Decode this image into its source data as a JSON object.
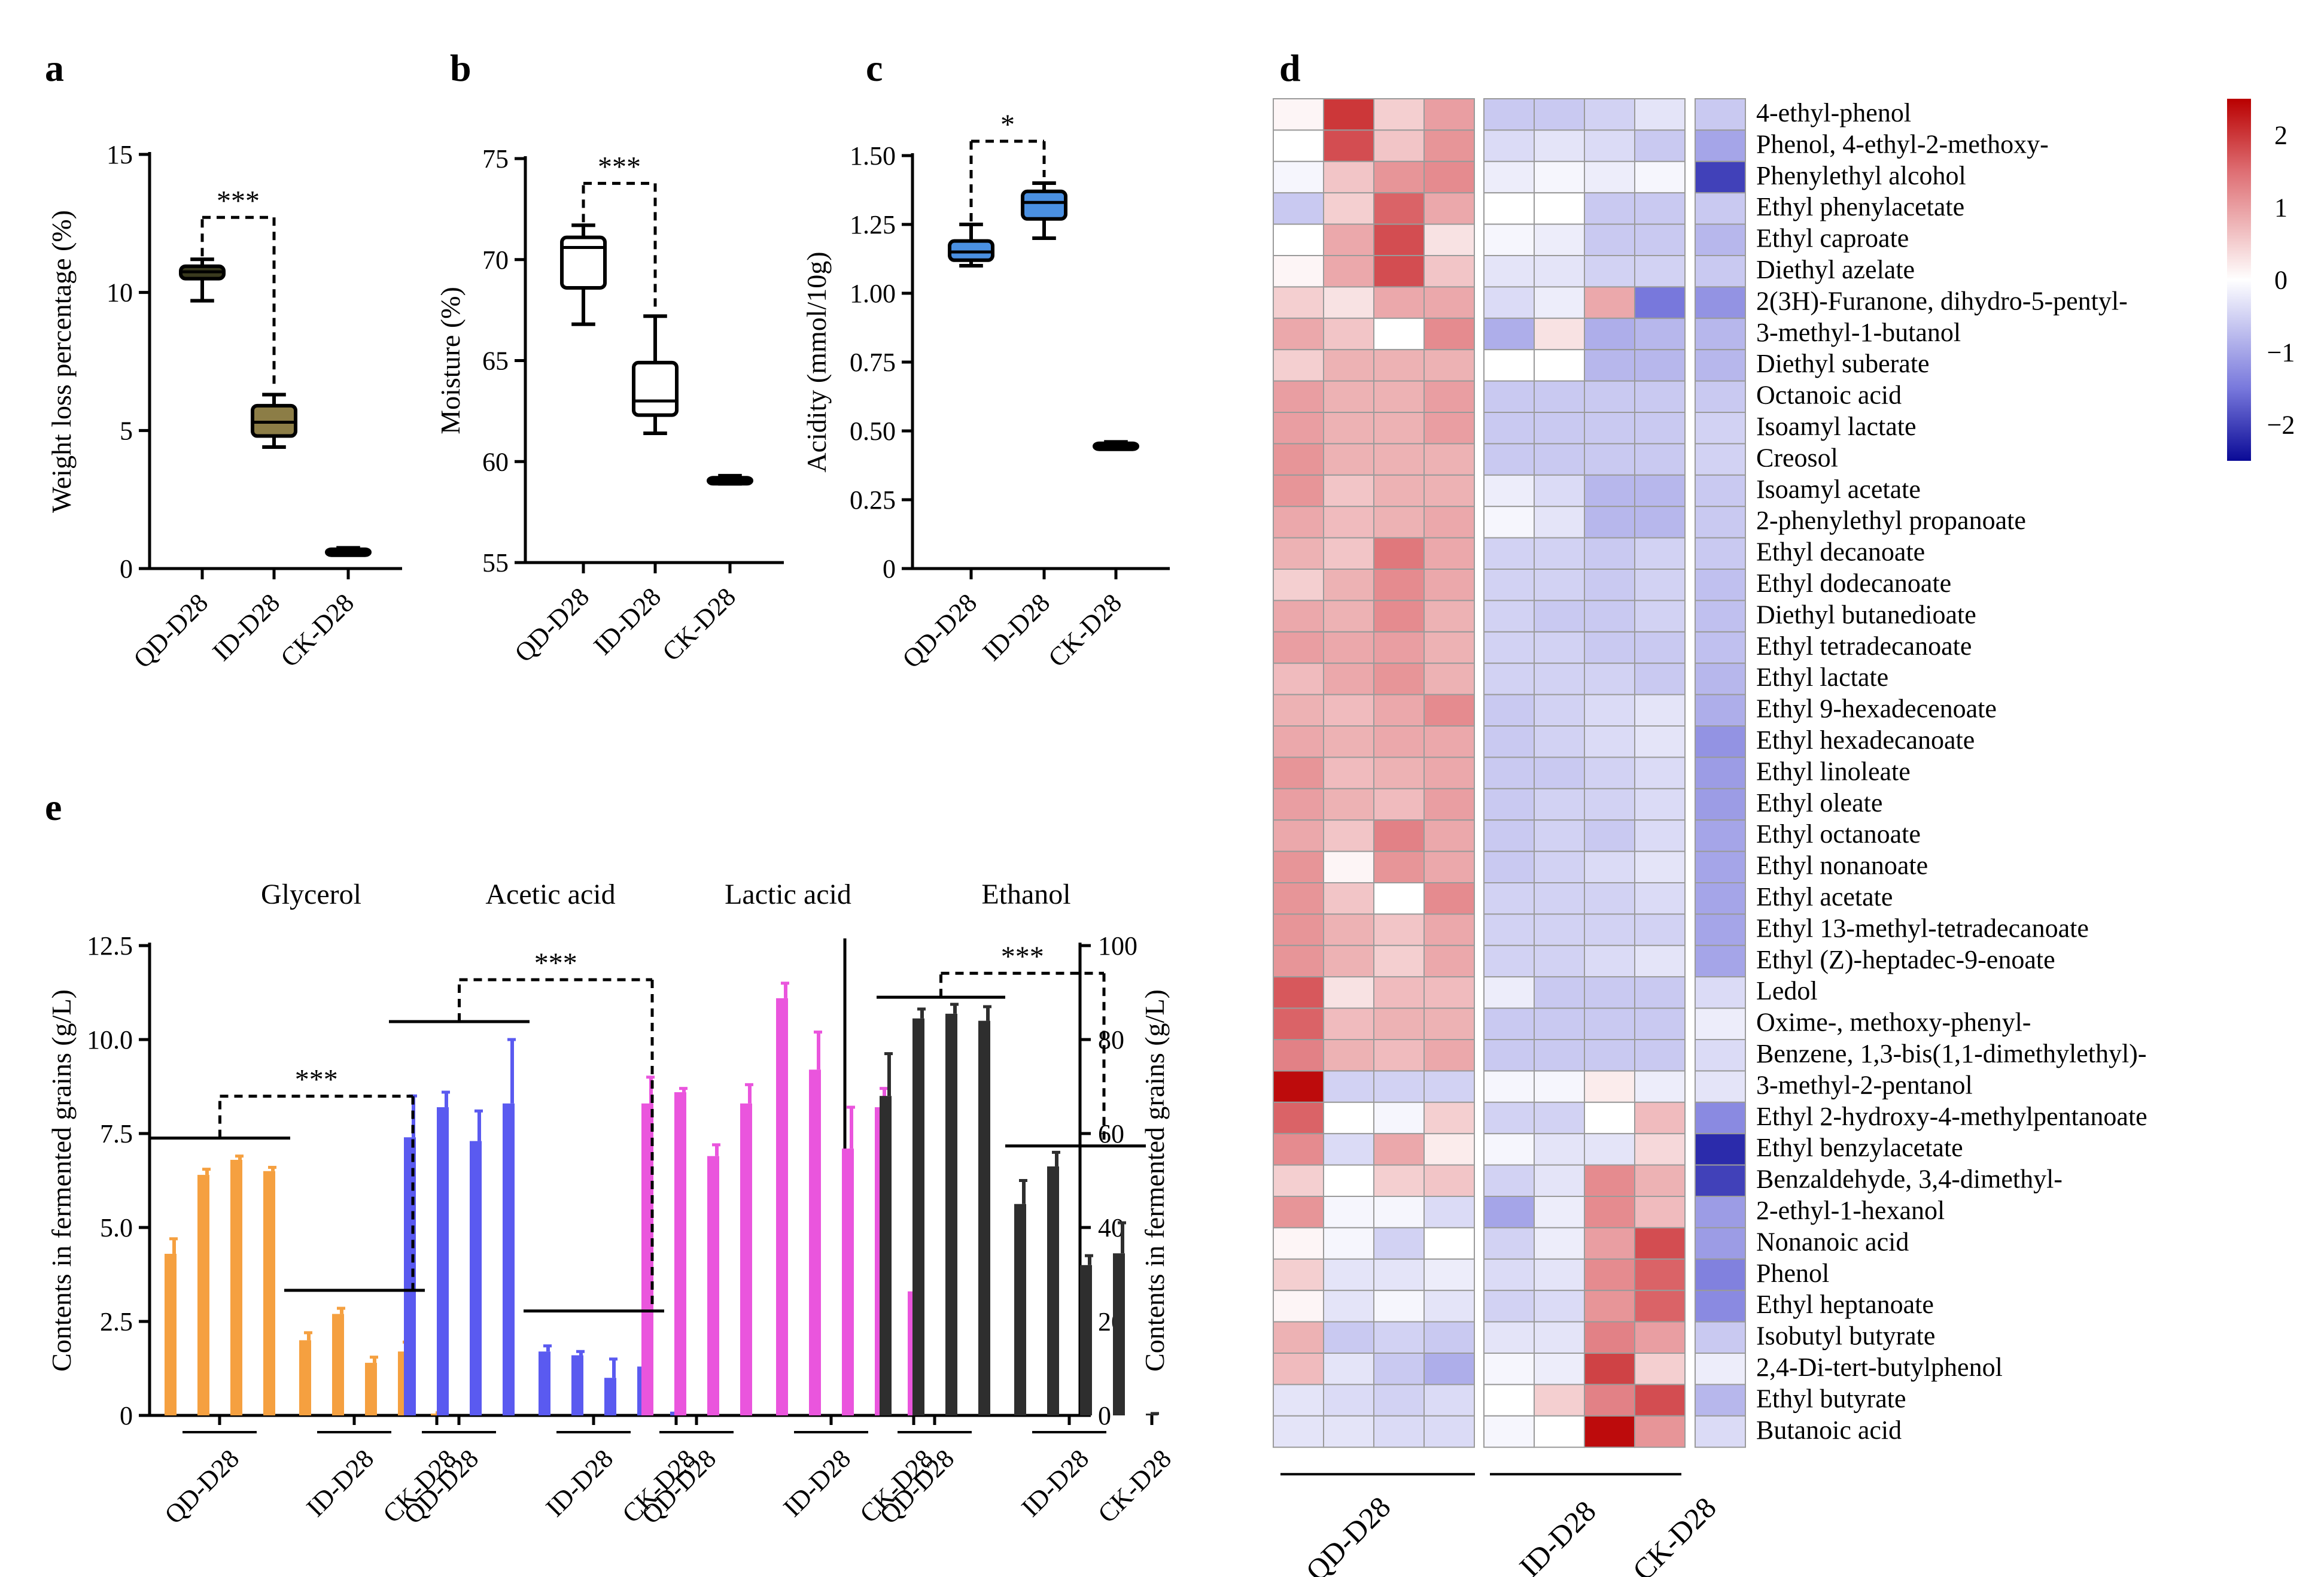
{
  "figure": {
    "panel_labels": [
      "a",
      "b",
      "c",
      "d",
      "e"
    ],
    "sig_a": "***",
    "sig_b": "***",
    "sig_c": "*",
    "sig_e_glycerol": "***",
    "sig_e_acetic": "***",
    "sig_e_ethanol": "***"
  },
  "chart_data": [
    {
      "panel": "a",
      "type": "box",
      "ylabel": "Weight loss percentage (%)",
      "categories": [
        "QD-D28",
        "ID-D28",
        "CK-D28"
      ],
      "yticks": [
        0,
        5,
        10,
        15
      ],
      "ytick_labels": [
        "0",
        "5",
        "10",
        "15"
      ],
      "ylim": [
        0,
        15
      ],
      "boxes": [
        {
          "min": 9.7,
          "q1": 10.5,
          "median": 10.75,
          "q3": 10.95,
          "max": 11.2,
          "color": "#3a3a1e"
        },
        {
          "min": 4.4,
          "q1": 4.8,
          "median": 5.3,
          "q3": 5.9,
          "max": 6.3,
          "color": "#8c7d46"
        },
        {
          "min": 0.5,
          "q1": 0.6,
          "median": 0.65,
          "q3": 0.7,
          "max": 0.75,
          "color": "#000000"
        }
      ],
      "significance": [
        {
          "from": 0,
          "to": 1,
          "label": "***"
        }
      ]
    },
    {
      "panel": "b",
      "type": "box",
      "ylabel": "Moisture (%)",
      "categories": [
        "QD-D28",
        "ID-D28",
        "CK-D28"
      ],
      "yticks": [
        55,
        60,
        65,
        70,
        75
      ],
      "ytick_labels": [
        "55",
        "60",
        "65",
        "70",
        "75"
      ],
      "ylim": [
        55,
        75
      ],
      "boxes": [
        {
          "min": 66.8,
          "q1": 68.6,
          "median": 70.6,
          "q3": 71.1,
          "max": 71.7,
          "color": "#ffffff"
        },
        {
          "min": 61.4,
          "q1": 62.3,
          "median": 63.0,
          "q3": 64.9,
          "max": 67.2,
          "color": "#ffffff"
        },
        {
          "min": 58.9,
          "q1": 59.0,
          "median": 59.1,
          "q3": 59.2,
          "max": 59.3,
          "color": "#000000"
        }
      ],
      "significance": [
        {
          "from": 0,
          "to": 1,
          "label": "***"
        }
      ]
    },
    {
      "panel": "c",
      "type": "box",
      "ylabel": "Acidity (mmol/10g)",
      "categories": [
        "QD-D28",
        "ID-D28",
        "CK-D28"
      ],
      "yticks": [
        0,
        0.25,
        0.5,
        0.75,
        1.0,
        1.25,
        1.5
      ],
      "ytick_labels": [
        "0",
        "0.25",
        "0.50",
        "0.75",
        "1.00",
        "1.25",
        "1.50"
      ],
      "ylim": [
        0,
        1.55
      ],
      "boxes": [
        {
          "min": 1.1,
          "q1": 1.12,
          "median": 1.15,
          "q3": 1.19,
          "max": 1.25,
          "color": "#4a90e2"
        },
        {
          "min": 1.2,
          "q1": 1.27,
          "median": 1.33,
          "q3": 1.37,
          "max": 1.4,
          "color": "#4a90e2"
        },
        {
          "min": 0.44,
          "q1": 0.445,
          "median": 0.45,
          "q3": 0.455,
          "max": 0.46,
          "color": "#000000"
        }
      ],
      "significance": [
        {
          "from": 0,
          "to": 1,
          "label": "*"
        }
      ]
    },
    {
      "panel": "d",
      "type": "heatmap",
      "colorbar": {
        "ticks": [
          2,
          1,
          0,
          -1,
          -2
        ],
        "tick_labels": [
          "2",
          "1",
          "0",
          "−1",
          "−2"
        ],
        "range": [
          -2.5,
          2.5
        ]
      },
      "group_labels": [
        "QD-D28",
        "ID-D28",
        "CK-D28"
      ],
      "rows": [
        "4-ethyl-phenol",
        "Phenol, 4-ethyl-2-methoxy-",
        "Phenylethyl alcohol",
        "Ethyl phenylacetate",
        "Ethyl caproate",
        "Diethyl azelate",
        "2(3H)-Furanone, dihydro-5-pentyl-",
        "3-methyl-1-butanol",
        "Diethyl suberate",
        "Octanoic acid",
        "Isoamyl lactate",
        "Creosol",
        "Isoamyl acetate",
        "2-phenylethyl propanoate",
        "Ethyl decanoate",
        "Ethyl dodecanoate",
        "Diethyl butanedioate",
        "Ethyl tetradecanoate",
        "Ethyl lactate",
        "Ethyl 9-hexadecenoate",
        "Ethyl hexadecanoate",
        "Ethyl linoleate",
        "Ethyl oleate",
        "Ethyl octanoate",
        "Ethyl nonanoate",
        "Ethyl acetate",
        "Ethyl 13-methyl-tetradecanoate",
        "Ethyl (Z)-heptadec-9-enoate",
        "Ledol",
        "Oxime-, methoxy-phenyl-",
        "Benzene, 1,3-bis(1,1-dimethylethyl)-",
        "3-methyl-2-pentanol",
        "Ethyl 2-hydroxy-4-methylpentanoate",
        "Ethyl benzylacetate",
        "Benzaldehyde, 3,4-dimethyl-",
        "2-ethyl-1-hexanol",
        "Nonanoic acid",
        "Phenol",
        "Ethyl heptanoate",
        "Isobutyl butyrate",
        "2,4-Di-tert-butylphenol",
        "Ethyl butyrate",
        "Butanoic acid"
      ],
      "values": [
        [
          0.1,
          2.0,
          0.5,
          1.0,
          -0.6,
          -0.6,
          -0.5,
          -0.3,
          -0.6
        ],
        [
          0.0,
          1.8,
          0.6,
          1.1,
          -0.4,
          -0.3,
          -0.4,
          -0.6,
          -1.0
        ],
        [
          -0.1,
          0.6,
          1.1,
          1.2,
          -0.2,
          -0.1,
          -0.2,
          -0.1,
          -2.0
        ],
        [
          -0.6,
          0.5,
          1.6,
          0.9,
          0.0,
          0.0,
          -0.6,
          -0.6,
          -0.6
        ],
        [
          0.0,
          0.9,
          1.8,
          0.3,
          -0.1,
          -0.2,
          -0.6,
          -0.6,
          -0.8
        ],
        [
          0.1,
          0.9,
          1.8,
          0.6,
          -0.3,
          -0.3,
          -0.5,
          -0.5,
          -0.6
        ],
        [
          0.5,
          0.3,
          0.9,
          0.9,
          -0.4,
          -0.2,
          0.9,
          -1.5,
          -1.2
        ],
        [
          0.9,
          0.6,
          0.0,
          1.2,
          -0.9,
          0.3,
          -0.9,
          -0.8,
          -0.8
        ],
        [
          0.5,
          0.8,
          0.8,
          0.8,
          0.0,
          0.0,
          -0.8,
          -0.8,
          -0.8
        ],
        [
          1.0,
          0.8,
          0.8,
          1.0,
          -0.6,
          -0.6,
          -0.6,
          -0.6,
          -0.6
        ],
        [
          1.0,
          0.8,
          0.8,
          1.0,
          -0.6,
          -0.6,
          -0.6,
          -0.6,
          -0.5
        ],
        [
          1.1,
          0.8,
          0.8,
          0.8,
          -0.6,
          -0.6,
          -0.6,
          -0.6,
          -0.5
        ],
        [
          1.1,
          0.6,
          0.8,
          0.8,
          -0.2,
          -0.4,
          -0.8,
          -0.8,
          -0.6
        ],
        [
          0.9,
          0.7,
          0.8,
          0.9,
          -0.1,
          -0.3,
          -0.8,
          -0.8,
          -0.6
        ],
        [
          0.8,
          0.6,
          1.4,
          0.9,
          -0.5,
          -0.5,
          -0.6,
          -0.5,
          -0.6
        ],
        [
          0.5,
          0.8,
          1.2,
          0.9,
          -0.5,
          -0.5,
          -0.6,
          -0.5,
          -0.7
        ],
        [
          0.9,
          0.8,
          1.2,
          0.8,
          -0.5,
          -0.6,
          -0.6,
          -0.5,
          -0.7
        ],
        [
          1.0,
          0.9,
          1.0,
          0.8,
          -0.5,
          -0.5,
          -0.6,
          -0.6,
          -0.7
        ],
        [
          0.7,
          0.9,
          1.1,
          0.8,
          -0.5,
          -0.5,
          -0.5,
          -0.6,
          -0.8
        ],
        [
          0.8,
          0.7,
          0.9,
          1.2,
          -0.6,
          -0.5,
          -0.4,
          -0.3,
          -0.9
        ],
        [
          0.9,
          0.8,
          0.9,
          0.9,
          -0.6,
          -0.5,
          -0.4,
          -0.3,
          -1.2
        ],
        [
          1.1,
          0.7,
          0.8,
          0.9,
          -0.6,
          -0.6,
          -0.5,
          -0.4,
          -1.1
        ],
        [
          1.0,
          0.8,
          0.7,
          1.0,
          -0.6,
          -0.5,
          -0.5,
          -0.4,
          -1.1
        ],
        [
          0.9,
          0.6,
          1.3,
          0.9,
          -0.6,
          -0.5,
          -0.6,
          -0.4,
          -1.0
        ],
        [
          1.1,
          0.1,
          1.1,
          0.9,
          -0.6,
          -0.5,
          -0.4,
          -0.3,
          -1.0
        ],
        [
          1.1,
          0.6,
          0.0,
          1.2,
          -0.5,
          -0.5,
          -0.5,
          -0.4,
          -1.0
        ],
        [
          1.1,
          0.8,
          0.6,
          0.9,
          -0.5,
          -0.5,
          -0.5,
          -0.5,
          -1.0
        ],
        [
          1.1,
          0.8,
          0.5,
          0.9,
          -0.5,
          -0.5,
          -0.4,
          -0.3,
          -1.0
        ],
        [
          1.7,
          0.3,
          0.7,
          0.7,
          -0.2,
          -0.6,
          -0.6,
          -0.6,
          -0.4
        ],
        [
          1.6,
          0.7,
          0.8,
          0.8,
          -0.6,
          -0.6,
          -0.6,
          -0.6,
          -0.2
        ],
        [
          1.3,
          0.8,
          0.7,
          0.9,
          -0.6,
          -0.6,
          -0.6,
          -0.6,
          -0.4
        ],
        [
          2.4,
          -0.5,
          -0.5,
          -0.5,
          -0.1,
          -0.1,
          0.2,
          -0.2,
          -0.3
        ],
        [
          1.6,
          0.0,
          -0.1,
          0.5,
          -0.5,
          -0.5,
          0.0,
          0.7,
          -1.3
        ],
        [
          1.2,
          -0.4,
          0.9,
          0.2,
          -0.1,
          -0.3,
          -0.3,
          0.4,
          -2.2
        ],
        [
          0.5,
          0.0,
          0.5,
          0.6,
          -0.5,
          -0.3,
          1.2,
          0.8,
          -2.0
        ],
        [
          1.1,
          -0.1,
          -0.1,
          -0.4,
          -1.0,
          -0.2,
          1.2,
          0.7,
          -1.1
        ],
        [
          0.1,
          -0.1,
          -0.5,
          0.0,
          -0.5,
          -0.2,
          1.0,
          1.8,
          -1.1
        ],
        [
          0.5,
          -0.3,
          -0.3,
          -0.2,
          -0.4,
          -0.3,
          1.2,
          1.6,
          -1.4
        ],
        [
          0.1,
          -0.3,
          -0.1,
          -0.3,
          -0.5,
          -0.4,
          1.1,
          1.6,
          -1.3
        ],
        [
          0.8,
          -0.6,
          -0.5,
          -0.6,
          -0.3,
          -0.3,
          1.3,
          1.0,
          -0.6
        ],
        [
          0.7,
          -0.3,
          -0.6,
          -0.9,
          -0.1,
          -0.2,
          1.9,
          0.5,
          -0.2
        ],
        [
          -0.3,
          -0.4,
          -0.5,
          -0.4,
          0.0,
          0.5,
          1.3,
          1.8,
          -0.8
        ],
        [
          -0.3,
          -0.3,
          -0.4,
          -0.4,
          -0.1,
          0.0,
          2.4,
          1.1,
          -0.4
        ]
      ]
    },
    {
      "panel": "e",
      "type": "bar",
      "ylabel_left": "Contents in fermented grains (g/L)",
      "ylabel_right": "Contents in fermented grains (g/L)",
      "left_yticks": [
        0,
        2.5,
        5.0,
        7.5,
        10.0,
        12.5
      ],
      "left_ytick_labels": [
        "0",
        "2.5",
        "5.0",
        "7.5",
        "10.0",
        "12.5"
      ],
      "left_ylim": [
        0,
        12.5
      ],
      "right_yticks": [
        0,
        20,
        40,
        60,
        80,
        100
      ],
      "right_ytick_labels": [
        "0",
        "20",
        "40",
        "60",
        "80",
        "100"
      ],
      "right_ylim": [
        0,
        100
      ],
      "group_labels": [
        "QD-D28",
        "ID-D28",
        "CK-D28"
      ],
      "series": [
        {
          "name": "Glycerol",
          "axis": "left",
          "color": "#f5a040",
          "values": [
            4.3,
            6.4,
            6.8,
            6.5,
            2.0,
            2.7,
            1.4,
            1.7,
            0.05
          ],
          "errors": [
            0.4,
            0.15,
            0.1,
            0.1,
            0.2,
            0.15,
            0.15,
            0.25,
            0.02
          ]
        },
        {
          "name": "Acetic acid",
          "axis": "left",
          "color": "#5a5af0",
          "values": [
            7.4,
            8.2,
            7.3,
            8.3,
            1.7,
            1.6,
            1.0,
            1.3,
            0.1
          ],
          "errors": [
            1.1,
            0.4,
            0.8,
            1.7,
            0.15,
            0.1,
            0.5,
            1.0,
            0.03
          ]
        },
        {
          "name": "Lactic acid",
          "axis": "left",
          "color": "#ea55dd",
          "values": [
            8.3,
            8.6,
            6.9,
            8.3,
            11.1,
            9.2,
            7.1,
            8.2,
            3.3
          ],
          "errors": [
            0.7,
            0.1,
            0.3,
            0.5,
            0.4,
            1.0,
            1.1,
            0.5,
            0.5
          ]
        },
        {
          "name": "Ethanol",
          "axis": "right",
          "color": "#2e2e2e",
          "values": [
            68.0,
            84.5,
            85.5,
            84.0,
            45.0,
            53.0,
            32.0,
            34.5,
            0.3
          ],
          "errors": [
            9.0,
            2.0,
            2.0,
            3.0,
            5.0,
            3.0,
            2.0,
            6.5,
            0.1
          ]
        }
      ],
      "significance": [
        {
          "series": "Glycerol",
          "label": "***"
        },
        {
          "series": "Acetic acid",
          "label": "***"
        },
        {
          "series": "Ethanol",
          "label": "***"
        }
      ]
    }
  ]
}
